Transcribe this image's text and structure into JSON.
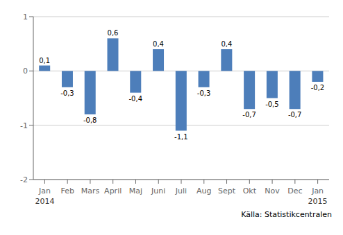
{
  "chart_data": {
    "type": "bar",
    "categories": [
      "Jan",
      "Feb",
      "Mars",
      "April",
      "Maj",
      "Juni",
      "Juli",
      "Aug",
      "Sept",
      "Okt",
      "Nov",
      "Dec",
      "Jan"
    ],
    "values": [
      0.1,
      -0.3,
      -0.8,
      0.6,
      -0.4,
      0.4,
      -1.1,
      -0.3,
      0.4,
      -0.7,
      -0.5,
      -0.7,
      -0.2
    ],
    "value_labels": [
      "0,1",
      "-0,3",
      "-0,8",
      "0,6",
      "-0,4",
      "0,4",
      "-1,1",
      "-0,3",
      "0,4",
      "-0,7",
      "-0,5",
      "-0,7",
      "-0,2"
    ],
    "data_labels": true,
    "color": "#4d7eba",
    "ylim": [
      -2,
      1
    ],
    "yticks": [
      -2,
      -1,
      0,
      1
    ],
    "grid": true,
    "annotations": [
      {
        "text": "2014",
        "category": 0
      },
      {
        "text": "2015",
        "category": 12
      },
      {
        "text": "Källa: Statistikcentralen"
      }
    ]
  }
}
